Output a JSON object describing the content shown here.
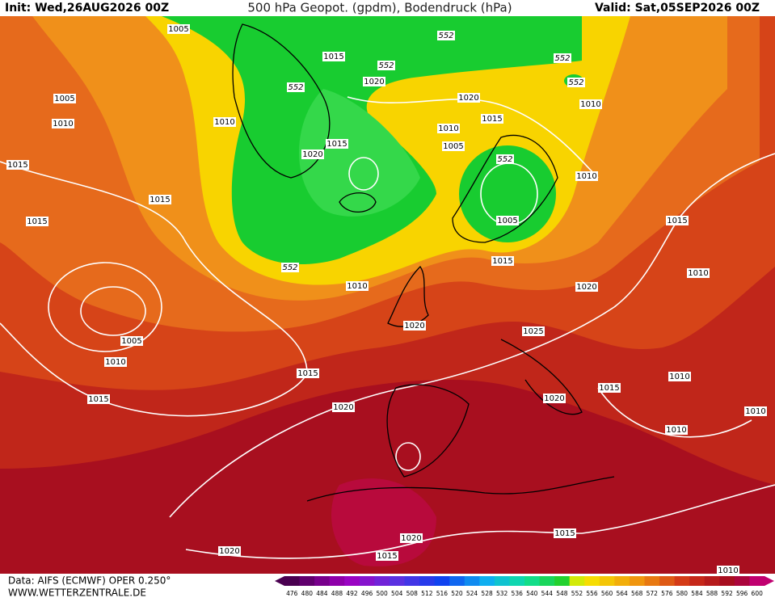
{
  "header": {
    "init": "Init: Wed,26AUG2026 00Z",
    "title": "500 hPa Geopot. (gpdm), Bodendruck (hPa)",
    "valid": "Valid: Sat,05SEP2026 00Z"
  },
  "footer": {
    "source": "Data: AIFS (ECMWF) OPER 0.250°",
    "site": "WWW.WETTERZENTRALE.DE"
  },
  "isobar_labels": [
    1005,
    1005,
    1010,
    1015,
    1015,
    1010,
    1015,
    1015,
    1020,
    1020,
    1015,
    1020,
    1015,
    1010,
    1005,
    1010,
    1010,
    1005,
    1015,
    1015,
    1010,
    1020,
    1010,
    1020,
    1025,
    1005,
    1010,
    1015,
    1010,
    1015,
    1020,
    1015,
    1020,
    1010,
    1010,
    1015,
    1020,
    1020,
    1015,
    1010
  ],
  "geopot_labels": [
    552,
    552,
    552,
    552,
    552,
    552,
    552
  ],
  "legend": {
    "labels": [
      476,
      480,
      484,
      488,
      492,
      496,
      500,
      504,
      508,
      512,
      516,
      520,
      524,
      528,
      532,
      536,
      540,
      544,
      548,
      552,
      556,
      560,
      564,
      568,
      572,
      576,
      580,
      584,
      588,
      592,
      596,
      600
    ]
  }
}
